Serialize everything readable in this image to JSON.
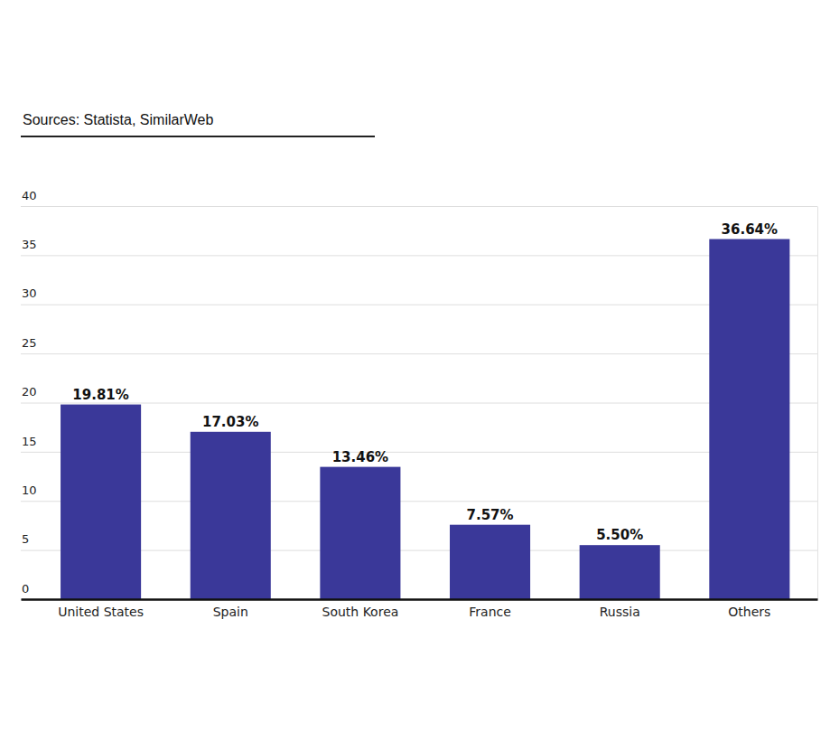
{
  "chart_data": {
    "type": "bar",
    "subtitle": "Sources: Statista, SimilarWeb",
    "categories": [
      "United States",
      "Spain",
      "South Korea",
      "France",
      "Russia",
      "Others"
    ],
    "values": [
      19.81,
      17.03,
      13.46,
      7.57,
      5.5,
      36.64
    ],
    "value_labels": [
      "19.81%",
      "17.03%",
      "13.46%",
      "7.57%",
      "5.50%",
      "36.64%"
    ],
    "color": "#3a3899",
    "ylim": [
      0,
      40
    ],
    "yticks": [
      0,
      5,
      10,
      15,
      20,
      25,
      30,
      35,
      40
    ],
    "grid": true,
    "data_labels": true
  }
}
